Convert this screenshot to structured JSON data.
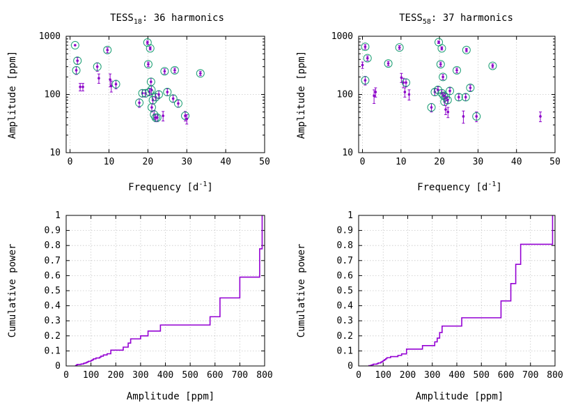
{
  "colors": {
    "points": "#8b00c8",
    "circles": "#1a9e72",
    "steps": "#9400d3"
  },
  "chart_data": [
    {
      "type": "scatter",
      "title_prefix": "TESS",
      "title_sub": "18",
      "title_suffix": ": 36 harmonics",
      "xlabel_main": "Frequency [d",
      "xlabel_sup": "-1",
      "xlabel_end": "]",
      "ylabel": "Amplitude [ppm]",
      "xlim": [
        -1,
        50
      ],
      "ylim": [
        10,
        1000
      ],
      "yscale": "log",
      "xticks": [
        "0",
        "10",
        "20",
        "30",
        "40",
        "50"
      ],
      "yticks": [
        "10",
        "100",
        "1000"
      ],
      "grid": true,
      "points": [
        {
          "x": 1.3,
          "y": 700,
          "e": 0,
          "c": true
        },
        {
          "x": 1.6,
          "y": 260,
          "e": 40,
          "c": true
        },
        {
          "x": 1.9,
          "y": 380,
          "e": 50,
          "c": true
        },
        {
          "x": 2.6,
          "y": 135,
          "e": 20,
          "c": false
        },
        {
          "x": 3.3,
          "y": 135,
          "e": 20,
          "c": false
        },
        {
          "x": 7.0,
          "y": 300,
          "e": 50,
          "c": true
        },
        {
          "x": 7.4,
          "y": 190,
          "e": 35,
          "c": false
        },
        {
          "x": 9.6,
          "y": 580,
          "e": 60,
          "c": true
        },
        {
          "x": 10.3,
          "y": 180,
          "e": 45,
          "c": false
        },
        {
          "x": 10.6,
          "y": 140,
          "e": 30,
          "c": false
        },
        {
          "x": 11.8,
          "y": 150,
          "e": 25,
          "c": true
        },
        {
          "x": 17.8,
          "y": 72,
          "e": 12,
          "c": true
        },
        {
          "x": 18.6,
          "y": 105,
          "e": 15,
          "c": true
        },
        {
          "x": 19.4,
          "y": 105,
          "e": 15,
          "c": true
        },
        {
          "x": 19.9,
          "y": 780,
          "e": 50,
          "c": true
        },
        {
          "x": 20.1,
          "y": 330,
          "e": 30,
          "c": true
        },
        {
          "x": 20.4,
          "y": 110,
          "e": 15,
          "c": true
        },
        {
          "x": 20.6,
          "y": 620,
          "e": 40,
          "c": true
        },
        {
          "x": 20.8,
          "y": 165,
          "e": 25,
          "c": true
        },
        {
          "x": 20.9,
          "y": 120,
          "e": 20,
          "c": true
        },
        {
          "x": 21.0,
          "y": 60,
          "e": 10,
          "c": true
        },
        {
          "x": 21.3,
          "y": 80,
          "e": 12,
          "c": true
        },
        {
          "x": 21.6,
          "y": 45,
          "e": 8,
          "c": true
        },
        {
          "x": 22.0,
          "y": 90,
          "e": 12,
          "c": true
        },
        {
          "x": 22.0,
          "y": 40,
          "e": 6,
          "c": true
        },
        {
          "x": 22.4,
          "y": 40,
          "e": 6,
          "c": true
        },
        {
          "x": 22.8,
          "y": 100,
          "e": 15,
          "c": true
        },
        {
          "x": 23.9,
          "y": 43,
          "e": 8,
          "c": false
        },
        {
          "x": 24.3,
          "y": 250,
          "e": 25,
          "c": true
        },
        {
          "x": 25.0,
          "y": 110,
          "e": 15,
          "c": true
        },
        {
          "x": 26.5,
          "y": 85,
          "e": 12,
          "c": true
        },
        {
          "x": 26.9,
          "y": 260,
          "e": 25,
          "c": true
        },
        {
          "x": 27.8,
          "y": 70,
          "e": 10,
          "c": true
        },
        {
          "x": 29.6,
          "y": 43,
          "e": 8,
          "c": true
        },
        {
          "x": 30.0,
          "y": 38,
          "e": 7,
          "c": false
        },
        {
          "x": 33.5,
          "y": 230,
          "e": 20,
          "c": true
        }
      ]
    },
    {
      "type": "scatter",
      "title_prefix": "TESS",
      "title_sub": "58",
      "title_suffix": ": 37 harmonics",
      "xlabel_main": "Frequency [d",
      "xlabel_sup": "-1",
      "xlabel_end": "]",
      "ylabel": "Amplitude [ppm]",
      "xlim": [
        -1,
        50
      ],
      "ylim": [
        10,
        1000
      ],
      "yscale": "log",
      "xticks": [
        "0",
        "10",
        "20",
        "30",
        "40",
        "50"
      ],
      "yticks": [
        "10",
        "100",
        "1000"
      ],
      "grid": true,
      "points": [
        {
          "x": 0.0,
          "y": 320,
          "e": 40,
          "c": false
        },
        {
          "x": 0.7,
          "y": 660,
          "e": 60,
          "c": true
        },
        {
          "x": 0.7,
          "y": 175,
          "e": 30,
          "c": true
        },
        {
          "x": 1.3,
          "y": 420,
          "e": 40,
          "c": true
        },
        {
          "x": 3.0,
          "y": 95,
          "e": 25,
          "c": false
        },
        {
          "x": 3.4,
          "y": 110,
          "e": 20,
          "c": false
        },
        {
          "x": 6.7,
          "y": 340,
          "e": 30,
          "c": true
        },
        {
          "x": 9.6,
          "y": 640,
          "e": 50,
          "c": true
        },
        {
          "x": 10.1,
          "y": 195,
          "e": 35,
          "c": false
        },
        {
          "x": 10.6,
          "y": 160,
          "e": 30,
          "c": false
        },
        {
          "x": 11.3,
          "y": 160,
          "e": 25,
          "c": true
        },
        {
          "x": 11.0,
          "y": 110,
          "e": 20,
          "c": false
        },
        {
          "x": 12.1,
          "y": 100,
          "e": 20,
          "c": false
        },
        {
          "x": 17.9,
          "y": 60,
          "e": 10,
          "c": true
        },
        {
          "x": 18.8,
          "y": 110,
          "e": 15,
          "c": true
        },
        {
          "x": 19.6,
          "y": 120,
          "e": 15,
          "c": true
        },
        {
          "x": 19.8,
          "y": 790,
          "e": 40,
          "c": true
        },
        {
          "x": 20.3,
          "y": 330,
          "e": 30,
          "c": true
        },
        {
          "x": 20.6,
          "y": 105,
          "e": 15,
          "c": true
        },
        {
          "x": 20.6,
          "y": 620,
          "e": 40,
          "c": true
        },
        {
          "x": 20.9,
          "y": 200,
          "e": 20,
          "c": true
        },
        {
          "x": 21.1,
          "y": 95,
          "e": 12,
          "c": true
        },
        {
          "x": 21.3,
          "y": 75,
          "e": 10,
          "c": true
        },
        {
          "x": 21.6,
          "y": 90,
          "e": 12,
          "c": true
        },
        {
          "x": 21.6,
          "y": 55,
          "e": 10,
          "c": false
        },
        {
          "x": 22.1,
          "y": 80,
          "e": 10,
          "c": true
        },
        {
          "x": 22.2,
          "y": 50,
          "e": 10,
          "c": false
        },
        {
          "x": 22.7,
          "y": 115,
          "e": 15,
          "c": true
        },
        {
          "x": 24.5,
          "y": 260,
          "e": 25,
          "c": true
        },
        {
          "x": 25.0,
          "y": 90,
          "e": 12,
          "c": true
        },
        {
          "x": 26.2,
          "y": 42,
          "e": 10,
          "c": false
        },
        {
          "x": 26.8,
          "y": 90,
          "e": 12,
          "c": true
        },
        {
          "x": 27.0,
          "y": 580,
          "e": 40,
          "c": true
        },
        {
          "x": 28.0,
          "y": 130,
          "e": 15,
          "c": true
        },
        {
          "x": 29.6,
          "y": 42,
          "e": 8,
          "c": true
        },
        {
          "x": 33.8,
          "y": 310,
          "e": 25,
          "c": true
        },
        {
          "x": 46.2,
          "y": 42,
          "e": 8,
          "c": false
        }
      ]
    },
    {
      "type": "line",
      "xlabel": "Amplitude [ppm]",
      "ylabel": "Cumulative power",
      "xlim": [
        0,
        800
      ],
      "ylim": [
        0,
        1
      ],
      "xticks": [
        "0",
        "100",
        "200",
        "300",
        "400",
        "500",
        "600",
        "700",
        "800"
      ],
      "yticks": [
        "0",
        "0.1",
        "0.2",
        "0.3",
        "0.4",
        "0.5",
        "0.6",
        "0.7",
        "0.8",
        "0.9",
        "1"
      ],
      "grid": true,
      "steps": [
        [
          38,
          0.002
        ],
        [
          40,
          0.004
        ],
        [
          42,
          0.006
        ],
        [
          43,
          0.008
        ],
        [
          45,
          0.01
        ],
        [
          60,
          0.013
        ],
        [
          70,
          0.016
        ],
        [
          72,
          0.019
        ],
        [
          80,
          0.023
        ],
        [
          85,
          0.027
        ],
        [
          90,
          0.031
        ],
        [
          100,
          0.036
        ],
        [
          105,
          0.041
        ],
        [
          110,
          0.047
        ],
        [
          120,
          0.053
        ],
        [
          135,
          0.058
        ],
        [
          140,
          0.065
        ],
        [
          150,
          0.073
        ],
        [
          165,
          0.081
        ],
        [
          180,
          0.105
        ],
        [
          190,
          0.105
        ],
        [
          230,
          0.125
        ],
        [
          250,
          0.152
        ],
        [
          260,
          0.18
        ],
        [
          300,
          0.2
        ],
        [
          330,
          0.232
        ],
        [
          380,
          0.272
        ],
        [
          580,
          0.327
        ],
        [
          620,
          0.452
        ],
        [
          700,
          0.59
        ],
        [
          780,
          0.778
        ],
        [
          790,
          1.0
        ]
      ]
    },
    {
      "type": "line",
      "xlabel": "Amplitude [ppm]",
      "ylabel": "Cumulative power",
      "xlim": [
        0,
        800
      ],
      "ylim": [
        0,
        1
      ],
      "xticks": [
        "0",
        "100",
        "200",
        "300",
        "400",
        "500",
        "600",
        "700",
        "800"
      ],
      "yticks": [
        "0",
        "0.1",
        "0.2",
        "0.3",
        "0.4",
        "0.5",
        "0.6",
        "0.7",
        "0.8",
        "0.9",
        "1"
      ],
      "grid": true,
      "steps": [
        [
          42,
          0.002
        ],
        [
          50,
          0.005
        ],
        [
          55,
          0.008
        ],
        [
          60,
          0.012
        ],
        [
          75,
          0.016
        ],
        [
          80,
          0.02
        ],
        [
          90,
          0.025
        ],
        [
          95,
          0.03
        ],
        [
          100,
          0.036
        ],
        [
          105,
          0.042
        ],
        [
          110,
          0.048
        ],
        [
          115,
          0.055
        ],
        [
          130,
          0.062
        ],
        [
          160,
          0.07
        ],
        [
          175,
          0.08
        ],
        [
          195,
          0.112
        ],
        [
          260,
          0.135
        ],
        [
          310,
          0.16
        ],
        [
          320,
          0.185
        ],
        [
          330,
          0.222
        ],
        [
          340,
          0.265
        ],
        [
          420,
          0.32
        ],
        [
          580,
          0.432
        ],
        [
          620,
          0.547
        ],
        [
          640,
          0.675
        ],
        [
          660,
          0.808
        ],
        [
          790,
          1.0
        ]
      ]
    }
  ]
}
